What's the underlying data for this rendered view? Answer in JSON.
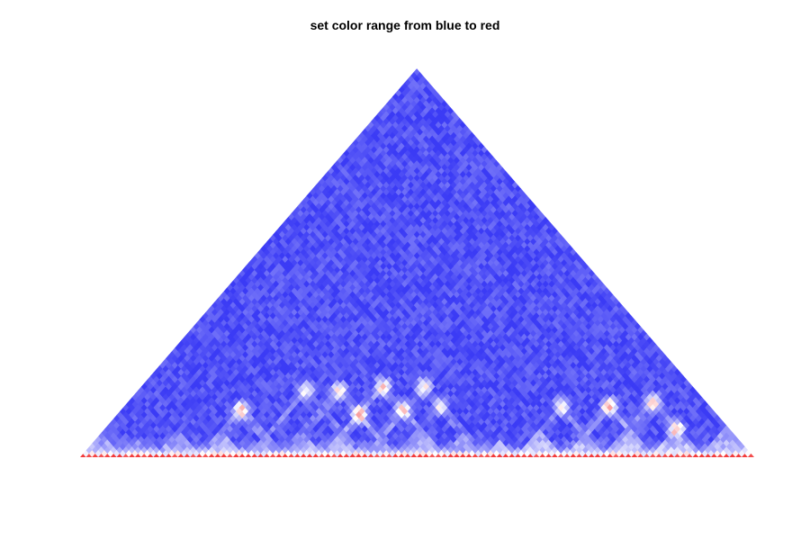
{
  "chart_data": {
    "type": "heatmap",
    "subtype": "triangular contact map (Hi-C style)",
    "title": "set color range from blue to red",
    "xlabel": "",
    "ylabel": "",
    "axes_visible": false,
    "grid": false,
    "legend": "none",
    "colormap": {
      "low": "#3b3bf5",
      "mid": "#ffffff",
      "high": "#f23b3b"
    },
    "value_range": [
      0,
      1
    ],
    "diagonal_value": 1.0,
    "background_value": 0.06,
    "domains": [
      {
        "start": 0.0,
        "end": 0.06,
        "value": 0.52
      },
      {
        "start": 0.06,
        "end": 0.11,
        "value": 0.46
      },
      {
        "start": 0.11,
        "end": 0.18,
        "value": 0.5
      },
      {
        "start": 0.18,
        "end": 0.25,
        "value": 0.62
      },
      {
        "start": 0.25,
        "end": 0.3,
        "value": 0.48
      },
      {
        "start": 0.3,
        "end": 0.36,
        "value": 0.55
      },
      {
        "start": 0.36,
        "end": 0.42,
        "value": 0.58
      },
      {
        "start": 0.42,
        "end": 0.47,
        "value": 0.5
      },
      {
        "start": 0.47,
        "end": 0.54,
        "value": 0.54
      },
      {
        "start": 0.54,
        "end": 0.6,
        "value": 0.47
      },
      {
        "start": 0.6,
        "end": 0.65,
        "value": 0.6
      },
      {
        "start": 0.65,
        "end": 0.72,
        "value": 0.66
      },
      {
        "start": 0.72,
        "end": 0.78,
        "value": 0.62
      },
      {
        "start": 0.78,
        "end": 0.85,
        "value": 0.7
      },
      {
        "start": 0.85,
        "end": 0.92,
        "value": 0.68
      },
      {
        "start": 0.92,
        "end": 1.0,
        "value": 0.64
      }
    ],
    "loops": [
      {
        "a": 0.18,
        "b": 0.3,
        "value": 0.72
      },
      {
        "a": 0.25,
        "b": 0.42,
        "value": 0.55
      },
      {
        "a": 0.3,
        "b": 0.47,
        "value": 0.62
      },
      {
        "a": 0.36,
        "b": 0.47,
        "value": 0.8
      },
      {
        "a": 0.36,
        "b": 0.54,
        "value": 0.66
      },
      {
        "a": 0.42,
        "b": 0.54,
        "value": 0.7
      },
      {
        "a": 0.42,
        "b": 0.6,
        "value": 0.58
      },
      {
        "a": 0.47,
        "b": 0.6,
        "value": 0.52
      },
      {
        "a": 0.65,
        "b": 0.78,
        "value": 0.62
      },
      {
        "a": 0.72,
        "b": 0.85,
        "value": 0.72
      },
      {
        "a": 0.78,
        "b": 0.92,
        "value": 0.66
      },
      {
        "a": 0.85,
        "b": 0.92,
        "value": 0.7
      }
    ]
  }
}
